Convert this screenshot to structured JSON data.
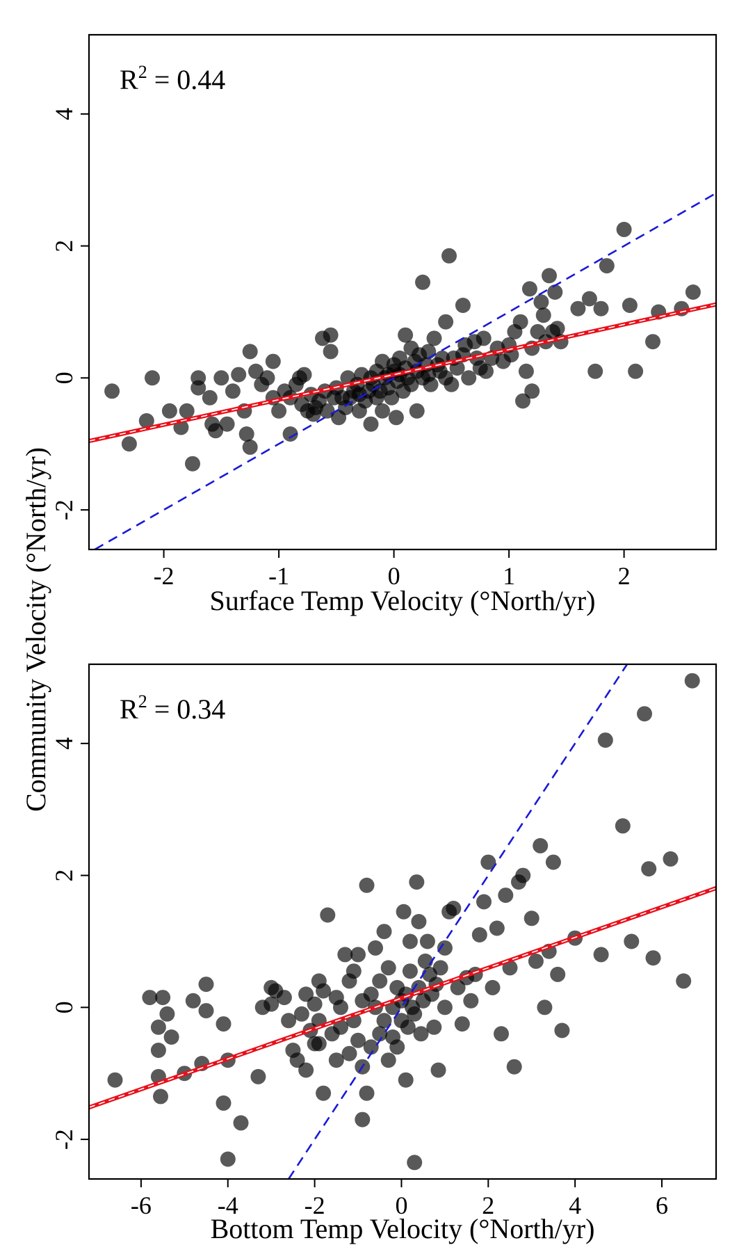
{
  "chart_data": [
    {
      "type": "scatter",
      "panel": "top",
      "xlabel": "Surface Temp Velocity (°North/yr)",
      "ylabel": "Community Velocity (°North/yr)",
      "annotation": {
        "prefix": "R",
        "sup": "2",
        "suffix": " = 0.44"
      },
      "xlim": [
        -2.65,
        2.8
      ],
      "ylim": [
        -2.6,
        5.2
      ],
      "xticks": [
        -2,
        -1,
        0,
        1,
        2
      ],
      "yticks": [
        -2,
        0,
        2,
        4
      ],
      "fit_line": {
        "slope": 0.38,
        "intercept": 0.05
      },
      "one_to_one": {
        "slope": 1.0,
        "intercept": 0.0
      },
      "colors": {
        "points": "#000000",
        "fit": "#e8101a",
        "reference": "#1a1ad6"
      },
      "points": [
        [
          -2.45,
          -0.2
        ],
        [
          -2.3,
          -1.0
        ],
        [
          -2.15,
          -0.65
        ],
        [
          -2.1,
          0.0
        ],
        [
          -1.95,
          -0.5
        ],
        [
          -1.85,
          -0.75
        ],
        [
          -1.8,
          -0.5
        ],
        [
          -1.75,
          -1.3
        ],
        [
          -1.7,
          -0.15
        ],
        [
          -1.7,
          0.0
        ],
        [
          -1.6,
          -0.3
        ],
        [
          -1.58,
          -0.7
        ],
        [
          -1.55,
          -0.8
        ],
        [
          -1.5,
          0.0
        ],
        [
          -1.45,
          -0.7
        ],
        [
          -1.4,
          -0.2
        ],
        [
          -1.35,
          0.05
        ],
        [
          -1.3,
          -0.5
        ],
        [
          -1.28,
          -0.85
        ],
        [
          -1.25,
          0.4
        ],
        [
          -1.25,
          -1.05
        ],
        [
          -1.2,
          0.1
        ],
        [
          -1.15,
          -0.1
        ],
        [
          -1.1,
          0.0
        ],
        [
          -1.05,
          -0.3
        ],
        [
          -1.05,
          0.25
        ],
        [
          -1.0,
          -0.5
        ],
        [
          -0.95,
          -0.2
        ],
        [
          -0.9,
          -0.85
        ],
        [
          -0.9,
          -0.3
        ],
        [
          -0.85,
          -0.1
        ],
        [
          -0.82,
          0.0
        ],
        [
          -0.8,
          -0.4
        ],
        [
          -0.78,
          0.05
        ],
        [
          -0.75,
          -0.5
        ],
        [
          -0.72,
          -0.25
        ],
        [
          -0.7,
          -0.55
        ],
        [
          -0.68,
          -0.45
        ],
        [
          -0.65,
          -0.35
        ],
        [
          -0.62,
          0.6
        ],
        [
          -0.6,
          -0.2
        ],
        [
          -0.58,
          -0.5
        ],
        [
          -0.55,
          0.4
        ],
        [
          -0.55,
          0.65
        ],
        [
          -0.52,
          -0.3
        ],
        [
          -0.5,
          -0.15
        ],
        [
          -0.48,
          -0.6
        ],
        [
          -0.45,
          -0.3
        ],
        [
          -0.42,
          -0.45
        ],
        [
          -0.4,
          0.0
        ],
        [
          -0.38,
          -0.3
        ],
        [
          -0.35,
          -0.2
        ],
        [
          -0.32,
          -0.1
        ],
        [
          -0.3,
          -0.5
        ],
        [
          -0.3,
          -0.25
        ],
        [
          -0.28,
          0.05
        ],
        [
          -0.25,
          -0.35
        ],
        [
          -0.22,
          -0.2
        ],
        [
          -0.2,
          -0.7
        ],
        [
          -0.2,
          0.0
        ],
        [
          -0.18,
          -0.1
        ],
        [
          -0.15,
          -0.3
        ],
        [
          -0.15,
          0.1
        ],
        [
          -0.12,
          -0.2
        ],
        [
          -0.1,
          -0.5
        ],
        [
          -0.1,
          0.25
        ],
        [
          -0.08,
          0.0
        ],
        [
          -0.05,
          -0.15
        ],
        [
          -0.05,
          0.05
        ],
        [
          -0.02,
          -0.3
        ],
        [
          0.0,
          0.2
        ],
        [
          0.0,
          0.1
        ],
        [
          0.02,
          -0.6
        ],
        [
          0.03,
          -0.05
        ],
        [
          0.05,
          0.3
        ],
        [
          0.05,
          0.05
        ],
        [
          0.08,
          -0.2
        ],
        [
          0.1,
          0.15
        ],
        [
          0.1,
          0.65
        ],
        [
          0.12,
          0.0
        ],
        [
          0.15,
          0.45
        ],
        [
          0.15,
          -0.1
        ],
        [
          0.18,
          0.25
        ],
        [
          0.2,
          0.1
        ],
        [
          0.2,
          -0.5
        ],
        [
          0.22,
          0.35
        ],
        [
          0.25,
          1.45
        ],
        [
          0.25,
          0.0
        ],
        [
          0.28,
          0.2
        ],
        [
          0.3,
          0.05
        ],
        [
          0.3,
          0.4
        ],
        [
          0.32,
          -0.1
        ],
        [
          0.35,
          0.6
        ],
        [
          0.38,
          0.2
        ],
        [
          0.4,
          0.1
        ],
        [
          0.42,
          0.3
        ],
        [
          0.45,
          0.85
        ],
        [
          0.45,
          0.0
        ],
        [
          0.48,
          1.85
        ],
        [
          0.5,
          -0.1
        ],
        [
          0.52,
          0.3
        ],
        [
          0.55,
          0.15
        ],
        [
          0.6,
          1.1
        ],
        [
          0.6,
          0.35
        ],
        [
          0.62,
          0.5
        ],
        [
          0.65,
          0.0
        ],
        [
          0.7,
          0.55
        ],
        [
          0.72,
          0.3
        ],
        [
          0.75,
          0.15
        ],
        [
          0.78,
          0.6
        ],
        [
          0.8,
          0.1
        ],
        [
          0.85,
          0.3
        ],
        [
          0.9,
          0.45
        ],
        [
          0.95,
          0.25
        ],
        [
          1.0,
          0.5
        ],
        [
          1.02,
          0.35
        ],
        [
          1.05,
          0.7
        ],
        [
          1.1,
          0.85
        ],
        [
          1.12,
          -0.35
        ],
        [
          1.15,
          0.1
        ],
        [
          1.18,
          1.35
        ],
        [
          1.2,
          0.45
        ],
        [
          1.2,
          -0.2
        ],
        [
          1.25,
          0.7
        ],
        [
          1.28,
          1.15
        ],
        [
          1.3,
          0.95
        ],
        [
          1.32,
          0.55
        ],
        [
          1.35,
          1.55
        ],
        [
          1.38,
          0.7
        ],
        [
          1.4,
          1.3
        ],
        [
          1.42,
          0.75
        ],
        [
          1.45,
          0.55
        ],
        [
          1.6,
          1.05
        ],
        [
          1.7,
          1.2
        ],
        [
          1.75,
          0.1
        ],
        [
          1.8,
          1.05
        ],
        [
          1.85,
          1.7
        ],
        [
          2.0,
          2.25
        ],
        [
          2.05,
          1.1
        ],
        [
          2.1,
          0.1
        ],
        [
          2.25,
          0.55
        ],
        [
          2.3,
          1.0
        ],
        [
          2.5,
          1.05
        ],
        [
          2.6,
          1.3
        ]
      ]
    },
    {
      "type": "scatter",
      "panel": "bottom",
      "xlabel": "Bottom Temp Velocity (°North/yr)",
      "ylabel": "Community Velocity (°North/yr)",
      "annotation": {
        "prefix": "R",
        "sup": "2",
        "suffix": " = 0.34"
      },
      "xlim": [
        -7.2,
        7.25
      ],
      "ylim": [
        -2.6,
        5.2
      ],
      "xticks": [
        -6,
        -4,
        -2,
        0,
        2,
        4,
        6
      ],
      "yticks": [
        -2,
        0,
        2,
        4
      ],
      "fit_line": {
        "slope": 0.23,
        "intercept": 0.14
      },
      "one_to_one": {
        "slope": 1.0,
        "intercept": 0.0
      },
      "colors": {
        "points": "#000000",
        "fit": "#e8101a",
        "reference": "#1a1ad6"
      },
      "points": [
        [
          -6.6,
          -1.1
        ],
        [
          -5.8,
          0.15
        ],
        [
          -5.6,
          -0.3
        ],
        [
          -5.5,
          0.15
        ],
        [
          -5.4,
          -0.1
        ],
        [
          -5.3,
          -0.45
        ],
        [
          -5.6,
          -1.05
        ],
        [
          -5.55,
          -1.35
        ],
        [
          -5.6,
          -0.65
        ],
        [
          -5.0,
          -1.0
        ],
        [
          -4.8,
          0.1
        ],
        [
          -4.5,
          -0.05
        ],
        [
          -4.6,
          -0.85
        ],
        [
          -4.5,
          0.35
        ],
        [
          -4.1,
          -0.25
        ],
        [
          -4.0,
          -0.8
        ],
        [
          -4.1,
          -1.45
        ],
        [
          -4.0,
          -2.3
        ],
        [
          -3.7,
          -1.75
        ],
        [
          -3.3,
          -1.05
        ],
        [
          -3.2,
          0.0
        ],
        [
          -3.0,
          0.05
        ],
        [
          -3.0,
          0.3
        ],
        [
          -2.9,
          0.25
        ],
        [
          -2.7,
          0.15
        ],
        [
          -2.6,
          -0.2
        ],
        [
          -2.5,
          -0.65
        ],
        [
          -2.4,
          -0.8
        ],
        [
          -2.3,
          -0.1
        ],
        [
          -2.2,
          0.2
        ],
        [
          -2.2,
          -0.95
        ],
        [
          -2.1,
          -0.35
        ],
        [
          -2.0,
          0.05
        ],
        [
          -2.0,
          -0.55
        ],
        [
          -1.9,
          -0.2
        ],
        [
          -1.9,
          0.4
        ],
        [
          -1.8,
          0.25
        ],
        [
          -1.8,
          -1.3
        ],
        [
          -1.7,
          1.4
        ],
        [
          -1.6,
          -0.4
        ],
        [
          -1.5,
          0.15
        ],
        [
          -1.5,
          -0.8
        ],
        [
          -1.4,
          0.0
        ],
        [
          -1.4,
          -0.3
        ],
        [
          -1.3,
          0.8
        ],
        [
          -1.2,
          0.4
        ],
        [
          -1.2,
          -0.7
        ],
        [
          -1.1,
          -0.2
        ],
        [
          -1.1,
          0.55
        ],
        [
          -1.0,
          0.8
        ],
        [
          -1.0,
          -0.5
        ],
        [
          -0.9,
          0.1
        ],
        [
          -0.9,
          -0.9
        ],
        [
          -0.8,
          1.85
        ],
        [
          -0.8,
          -1.3
        ],
        [
          -0.7,
          0.2
        ],
        [
          -0.7,
          -0.6
        ],
        [
          -0.6,
          0.0
        ],
        [
          -0.6,
          0.9
        ],
        [
          -0.5,
          -0.4
        ],
        [
          -0.5,
          0.4
        ],
        [
          -0.4,
          1.15
        ],
        [
          -0.4,
          -0.2
        ],
        [
          -0.3,
          0.6
        ],
        [
          -0.3,
          -0.8
        ],
        [
          -0.2,
          0.0
        ],
        [
          -0.2,
          -0.45
        ],
        [
          -0.1,
          0.3
        ],
        [
          -0.1,
          -0.6
        ],
        [
          0.0,
          0.1
        ],
        [
          0.0,
          -0.2
        ],
        [
          0.05,
          1.45
        ],
        [
          0.1,
          -1.1
        ],
        [
          0.1,
          0.2
        ],
        [
          0.15,
          -0.3
        ],
        [
          0.2,
          0.55
        ],
        [
          0.2,
          1.0
        ],
        [
          0.25,
          0.0
        ],
        [
          0.3,
          -0.1
        ],
        [
          0.35,
          1.9
        ],
        [
          0.4,
          1.3
        ],
        [
          0.4,
          0.3
        ],
        [
          0.45,
          -0.4
        ],
        [
          0.5,
          0.1
        ],
        [
          0.55,
          0.7
        ],
        [
          0.6,
          1.0
        ],
        [
          0.65,
          0.5
        ],
        [
          0.7,
          0.2
        ],
        [
          0.75,
          -0.3
        ],
        [
          0.8,
          0.35
        ],
        [
          0.85,
          -0.95
        ],
        [
          0.9,
          0.6
        ],
        [
          1.0,
          0.9
        ],
        [
          1.0,
          0.0
        ],
        [
          1.1,
          1.45
        ],
        [
          1.2,
          1.5
        ],
        [
          1.3,
          0.3
        ],
        [
          1.4,
          -0.25
        ],
        [
          1.5,
          0.45
        ],
        [
          1.6,
          0.1
        ],
        [
          1.7,
          0.5
        ],
        [
          1.8,
          1.1
        ],
        [
          1.9,
          1.6
        ],
        [
          2.0,
          2.2
        ],
        [
          2.1,
          0.3
        ],
        [
          2.2,
          1.2
        ],
        [
          2.3,
          -0.4
        ],
        [
          2.4,
          1.7
        ],
        [
          2.5,
          0.6
        ],
        [
          2.6,
          -0.9
        ],
        [
          2.7,
          1.9
        ],
        [
          2.8,
          2.0
        ],
        [
          3.0,
          1.35
        ],
        [
          3.1,
          0.7
        ],
        [
          3.2,
          2.45
        ],
        [
          3.3,
          0.0
        ],
        [
          3.4,
          0.85
        ],
        [
          3.5,
          2.2
        ],
        [
          3.6,
          0.5
        ],
        [
          3.7,
          -0.35
        ],
        [
          4.0,
          1.05
        ],
        [
          4.6,
          0.8
        ],
        [
          4.7,
          4.05
        ],
        [
          5.1,
          2.75
        ],
        [
          5.3,
          1.0
        ],
        [
          5.6,
          4.45
        ],
        [
          5.7,
          2.1
        ],
        [
          5.8,
          0.75
        ],
        [
          6.2,
          2.25
        ],
        [
          6.5,
          0.4
        ],
        [
          6.7,
          4.95
        ],
        [
          0.3,
          -2.35
        ],
        [
          -0.9,
          -1.7
        ],
        [
          -1.9,
          -0.55
        ]
      ]
    }
  ],
  "shared_ylabel": "Community Velocity (°North/yr)",
  "panels": [
    {
      "xlabel": "Surface Temp Velocity (°North/yr)"
    },
    {
      "xlabel": "Bottom Temp Velocity (°North/yr)"
    }
  ]
}
